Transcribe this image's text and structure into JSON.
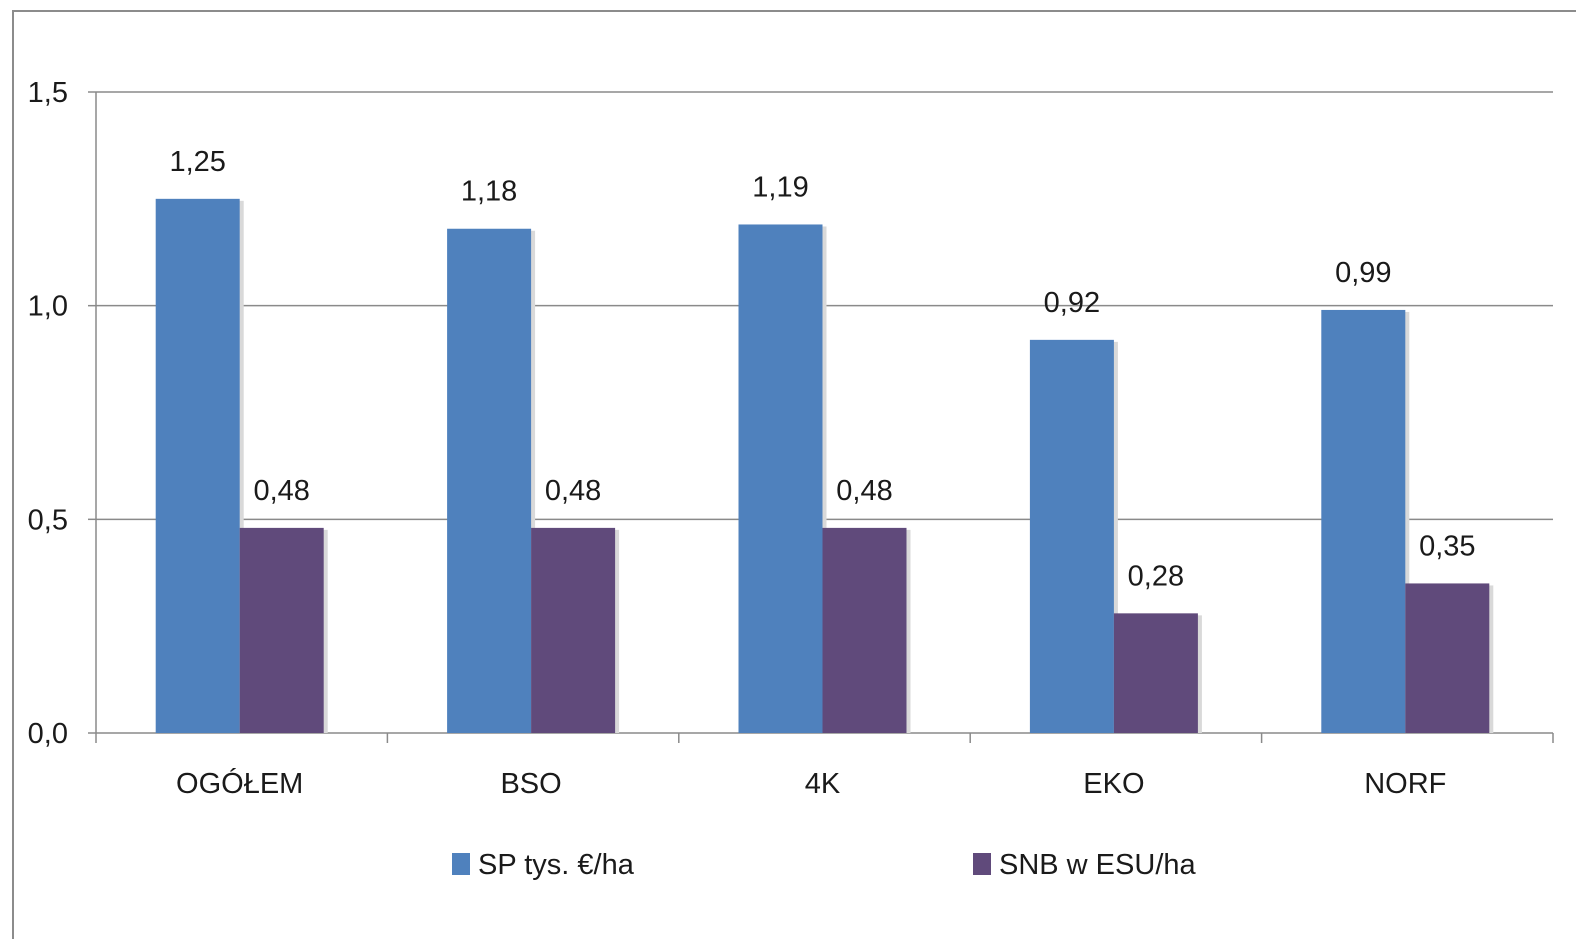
{
  "chart_data": {
    "type": "bar",
    "categories": [
      "OGÓŁEM",
      "BSO",
      "4K",
      "EKO",
      "NORF"
    ],
    "series": [
      {
        "name": "SP tys. €/ha",
        "color": "#4f81bd",
        "values": [
          1.25,
          1.18,
          1.19,
          0.92,
          0.99
        ],
        "labels": [
          "1,25",
          "1,18",
          "1,19",
          "0,92",
          "0,99"
        ]
      },
      {
        "name": "SNB w ESU/ha",
        "color": "#604a7b",
        "values": [
          0.48,
          0.48,
          0.48,
          0.28,
          0.35
        ],
        "labels": [
          "0,48",
          "0,48",
          "0,48",
          "0,28",
          "0,35"
        ]
      }
    ],
    "yticks": [
      0,
      0.5,
      1.0,
      1.5
    ],
    "ytick_labels": [
      "0,0",
      "0,5",
      "1,0",
      "1,5"
    ],
    "ylim": [
      0,
      1.5
    ],
    "grid": true,
    "legend_position": "bottom"
  }
}
